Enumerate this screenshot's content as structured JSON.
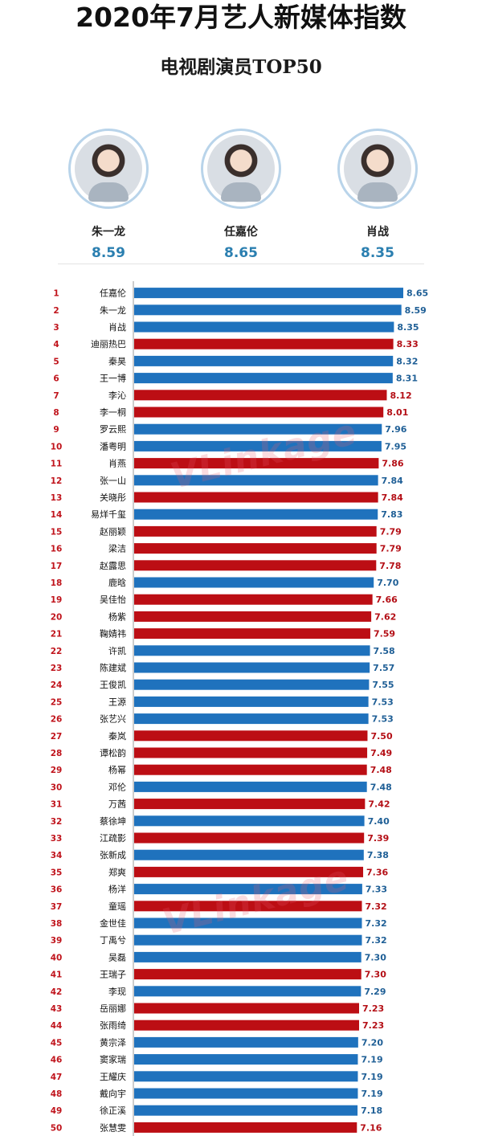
{
  "header": {
    "title": "2020年7月艺人新媒体指数",
    "subtitle": "电视剧演员TOP50"
  },
  "podium": [
    {
      "name": "朱一龙",
      "score": "8.59"
    },
    {
      "name": "任嘉伦",
      "score": "8.65"
    },
    {
      "name": "肖战",
      "score": "8.35"
    }
  ],
  "watermark": "VLinkage",
  "colors": {
    "blue": "#1f72bd",
    "red": "#bc0e14",
    "blue_text": "#1f5f96",
    "red_text": "#b40f16",
    "rank_red": "#c0141c",
    "rank_blue": "#1f5f96"
  },
  "chart_data": {
    "type": "bar",
    "orientation": "horizontal",
    "title": "电视剧演员TOP50",
    "xlim": [
      0,
      8.65
    ],
    "rows": [
      {
        "rank": 1,
        "name": "任嘉伦",
        "value": 8.65,
        "color": "blue"
      },
      {
        "rank": 2,
        "name": "朱一龙",
        "value": 8.59,
        "color": "blue"
      },
      {
        "rank": 3,
        "name": "肖战",
        "value": 8.35,
        "color": "blue"
      },
      {
        "rank": 4,
        "name": "迪丽热巴",
        "value": 8.33,
        "color": "red"
      },
      {
        "rank": 5,
        "name": "秦昊",
        "value": 8.32,
        "color": "blue"
      },
      {
        "rank": 6,
        "name": "王一博",
        "value": 8.31,
        "color": "blue"
      },
      {
        "rank": 7,
        "name": "李沁",
        "value": 8.12,
        "color": "red"
      },
      {
        "rank": 8,
        "name": "李一桐",
        "value": 8.01,
        "color": "red"
      },
      {
        "rank": 9,
        "name": "罗云熙",
        "value": 7.96,
        "color": "blue"
      },
      {
        "rank": 10,
        "name": "潘粤明",
        "value": 7.95,
        "color": "blue"
      },
      {
        "rank": 11,
        "name": "肖燕",
        "value": 7.86,
        "color": "red"
      },
      {
        "rank": 12,
        "name": "张一山",
        "value": 7.84,
        "color": "blue"
      },
      {
        "rank": 13,
        "name": "关晓彤",
        "value": 7.84,
        "color": "red"
      },
      {
        "rank": 14,
        "name": "易烊千玺",
        "value": 7.83,
        "color": "blue"
      },
      {
        "rank": 15,
        "name": "赵丽颖",
        "value": 7.79,
        "color": "red"
      },
      {
        "rank": 16,
        "name": "梁洁",
        "value": 7.79,
        "color": "red"
      },
      {
        "rank": 17,
        "name": "赵露思",
        "value": 7.78,
        "color": "red"
      },
      {
        "rank": 18,
        "name": "鹿晗",
        "value": 7.7,
        "color": "blue"
      },
      {
        "rank": 19,
        "name": "吴佳怡",
        "value": 7.66,
        "color": "red"
      },
      {
        "rank": 20,
        "name": "杨紫",
        "value": 7.62,
        "color": "red"
      },
      {
        "rank": 21,
        "name": "鞠婧祎",
        "value": 7.59,
        "color": "red"
      },
      {
        "rank": 22,
        "name": "许凯",
        "value": 7.58,
        "color": "blue"
      },
      {
        "rank": 23,
        "name": "陈建斌",
        "value": 7.57,
        "color": "blue"
      },
      {
        "rank": 24,
        "name": "王俊凯",
        "value": 7.55,
        "color": "blue"
      },
      {
        "rank": 25,
        "name": "王源",
        "value": 7.53,
        "color": "blue"
      },
      {
        "rank": 26,
        "name": "张艺兴",
        "value": 7.53,
        "color": "blue"
      },
      {
        "rank": 27,
        "name": "秦岚",
        "value": 7.5,
        "color": "red"
      },
      {
        "rank": 28,
        "name": "谭松韵",
        "value": 7.49,
        "color": "red"
      },
      {
        "rank": 29,
        "name": "杨幂",
        "value": 7.48,
        "color": "red"
      },
      {
        "rank": 30,
        "name": "邓伦",
        "value": 7.48,
        "color": "blue"
      },
      {
        "rank": 31,
        "name": "万茜",
        "value": 7.42,
        "color": "red"
      },
      {
        "rank": 32,
        "name": "蔡徐坤",
        "value": 7.4,
        "color": "blue"
      },
      {
        "rank": 33,
        "name": "江疏影",
        "value": 7.39,
        "color": "red"
      },
      {
        "rank": 34,
        "name": "张新成",
        "value": 7.38,
        "color": "blue"
      },
      {
        "rank": 35,
        "name": "郑爽",
        "value": 7.36,
        "color": "red"
      },
      {
        "rank": 36,
        "name": "杨洋",
        "value": 7.33,
        "color": "blue"
      },
      {
        "rank": 37,
        "name": "童瑶",
        "value": 7.32,
        "color": "red"
      },
      {
        "rank": 38,
        "name": "金世佳",
        "value": 7.32,
        "color": "blue"
      },
      {
        "rank": 39,
        "name": "丁禹兮",
        "value": 7.32,
        "color": "blue"
      },
      {
        "rank": 40,
        "name": "吴磊",
        "value": 7.3,
        "color": "blue"
      },
      {
        "rank": 41,
        "name": "王瑞子",
        "value": 7.3,
        "color": "red"
      },
      {
        "rank": 42,
        "name": "李现",
        "value": 7.29,
        "color": "blue"
      },
      {
        "rank": 43,
        "name": "岳丽娜",
        "value": 7.23,
        "color": "red"
      },
      {
        "rank": 44,
        "name": "张雨绮",
        "value": 7.23,
        "color": "red"
      },
      {
        "rank": 45,
        "name": "黄宗泽",
        "value": 7.2,
        "color": "blue"
      },
      {
        "rank": 46,
        "name": "窦家瑞",
        "value": 7.19,
        "color": "blue"
      },
      {
        "rank": 47,
        "name": "王耀庆",
        "value": 7.19,
        "color": "blue"
      },
      {
        "rank": 48,
        "name": "戴向宇",
        "value": 7.19,
        "color": "blue"
      },
      {
        "rank": 49,
        "name": "徐正溪",
        "value": 7.18,
        "color": "blue"
      },
      {
        "rank": 50,
        "name": "张慧雯",
        "value": 7.16,
        "color": "red"
      }
    ]
  }
}
